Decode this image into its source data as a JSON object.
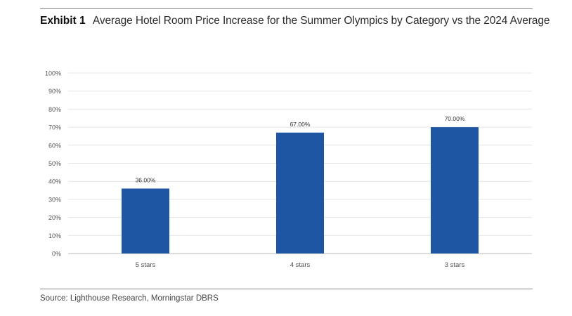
{
  "header": {
    "exhibit_label": "Exhibit 1",
    "title": "Average Hotel Room Price Increase for the Summer Olympics by Category vs the 2024 Average"
  },
  "source": "Source: Lighthouse Research, Morningstar DBRS",
  "colors": {
    "bar": "#1f56a3",
    "grid": "#e4e4e4",
    "axis": "#b8b8b8",
    "tick_text": "#555555"
  },
  "chart_data": {
    "type": "bar",
    "categories": [
      "5 stars",
      "4 stars",
      "3 stars"
    ],
    "values": [
      36,
      67,
      70
    ],
    "data_labels": [
      "36.00%",
      "67.00%",
      "70.00%"
    ],
    "ylim": [
      0,
      100
    ],
    "yticks": [
      0,
      10,
      20,
      30,
      40,
      50,
      60,
      70,
      80,
      90,
      100
    ],
    "ytick_labels": [
      "0%",
      "10%",
      "20%",
      "30%",
      "40%",
      "50%",
      "60%",
      "70%",
      "80%",
      "90%",
      "100%"
    ],
    "xlabel": "",
    "ylabel": "",
    "grid": true,
    "legend": "none"
  }
}
